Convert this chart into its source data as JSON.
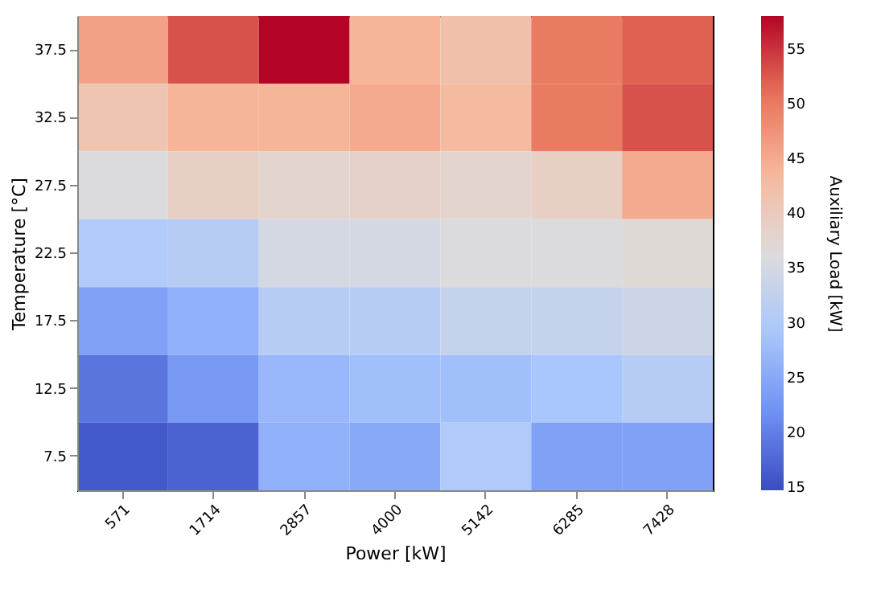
{
  "chart_data": {
    "type": "heatmap",
    "xlabel": "Power [kW]",
    "ylabel": "Temperature [°C]",
    "clabel": "Auxiliary Load [kW]",
    "categories": [
      "571",
      "1714",
      "2857",
      "4000",
      "5142",
      "6285",
      "7428"
    ],
    "y_categories": [
      "37.5",
      "32.5",
      "27.5",
      "22.5",
      "17.5",
      "12.5",
      "7.5"
    ],
    "cells": [
      [
        46,
        53,
        58,
        44,
        42,
        50,
        52
      ],
      [
        41,
        44,
        44,
        45,
        43,
        50,
        53
      ],
      [
        36,
        39,
        38,
        38.5,
        38,
        39,
        45
      ],
      [
        30,
        31,
        35,
        35,
        36,
        36,
        37
      ],
      [
        24,
        26,
        31,
        31,
        33,
        33,
        34
      ],
      [
        19,
        23,
        27,
        28,
        28,
        29,
        31
      ],
      [
        16,
        17,
        26,
        25,
        30,
        24,
        24
      ]
    ],
    "clim": [
      14.7,
      58
    ],
    "cticks": [
      15,
      20,
      25,
      30,
      35,
      40,
      45,
      50,
      55
    ]
  }
}
